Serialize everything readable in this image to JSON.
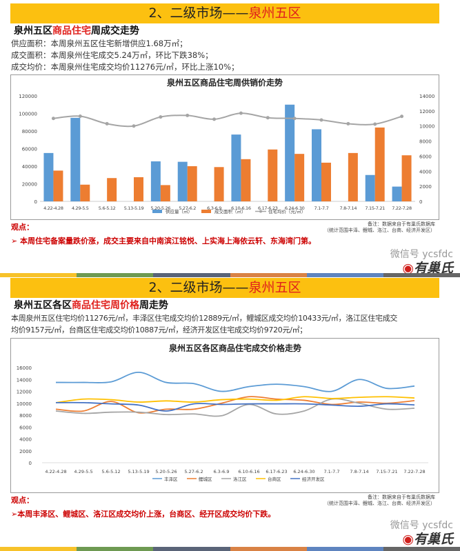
{
  "section1": {
    "banner_prefix": "2、二级市场——",
    "banner_highlight": "泉州五区",
    "subtitle_a": "泉州五区",
    "subtitle_hl": "商品住宅",
    "subtitle_b": "周成交走势",
    "lines": [
      "供应面积：本周泉州五区住宅新增供应1.68万㎡；",
      "成交面积：本周泉州住宅成交5.24万㎡，环比下跌38%；",
      "成交均价：本周泉州住宅成交均价11276元/㎡，环比上涨10%；"
    ],
    "view_label": "观点：",
    "view_text": "➢   本周住宅备案量跌价涨，成交主要来自中南滨江铭悦、上实海上海依云轩、东海湾门第。",
    "note_lines": [
      "备注：数据来自于有巢氏数据库",
      "（统计范围丰泽、鲤城、洛江、台商、经济开发区）"
    ]
  },
  "section2": {
    "banner_prefix": "2、二级市场——",
    "banner_highlight": "泉州五区",
    "subtitle_a": "泉州五区各区",
    "subtitle_hl": "商品住宅周价格",
    "subtitle_b": "周走势",
    "lines": [
      "本周泉州五区住宅均价11276元/㎡，丰泽区住宅成交均价12889元/㎡，鲤城区成交均价10433元/㎡，洛江区住宅成交",
      "均价9157元/㎡，台商区住宅成交均价10887元/㎡，经济开发区住宅成交均价9720元/㎡；"
    ],
    "view_label": "观点：",
    "view_text": "➢本周丰泽区、鲤城区、洛江区成交均价上涨，台商区、经开区成交均价下跌。",
    "note_lines": [
      "备注：数据来自于有巢氏数据库",
      "（统计范围丰泽、鲤城、洛江、台商、经济开发区）"
    ]
  },
  "logo": {
    "wechat": "微信号 ycsfdc",
    "brand": "有巢氏"
  },
  "stripe_colors": [
    "#f7c22a",
    "#6e9a52",
    "#5a6478",
    "#d98245",
    "#5e84bf",
    "#666666"
  ],
  "chart_data": [
    {
      "type": "bar+line",
      "title": "泉州五区商品住宅周供销价走势",
      "categories": [
        "4.22-4.28",
        "4.29-5.5",
        "5.6-5.12",
        "5.13-5.19",
        "5.20-5.26",
        "5.27-6.2",
        "6.3-6.9",
        "6.10-6.16",
        "6.17-6.23",
        "6.24-6.30",
        "7.1-7.7",
        "7.8-7.14",
        "7.15-7.21",
        "7.22-7.28"
      ],
      "ylim_left": [
        0,
        120000
      ],
      "yticks_left": [
        0,
        20000,
        40000,
        60000,
        80000,
        100000,
        120000
      ],
      "ylim_right": [
        0,
        14000
      ],
      "yticks_right": [
        0,
        2000,
        4000,
        6000,
        8000,
        10000,
        12000,
        14000
      ],
      "legend": "bottom",
      "grid": false,
      "series": [
        {
          "name": "供应量（㎡）",
          "type": "bar",
          "axis": "left",
          "color": "#5b9bd5",
          "values": [
            55000,
            95000,
            0,
            0,
            45500,
            45000,
            0,
            76000,
            0,
            110000,
            82000,
            0,
            30000,
            16800
          ]
        },
        {
          "name": "成交面积（㎡）",
          "type": "bar",
          "axis": "left",
          "color": "#ed7d31",
          "values": [
            35000,
            19000,
            26500,
            27500,
            18500,
            40000,
            39000,
            48000,
            59000,
            54000,
            44000,
            55000,
            84000,
            52400
          ]
        },
        {
          "name": "住宅均价（元/㎡）",
          "type": "line",
          "axis": "right",
          "color": "#a5a5a5",
          "values": [
            11000,
            11300,
            10300,
            10000,
            11200,
            11400,
            10900,
            11700,
            11100,
            11000,
            10800,
            10300,
            10250,
            11276
          ]
        }
      ]
    },
    {
      "type": "line",
      "title": "泉州五区各区商品住宅成交价格走势",
      "categories": [
        "4.22-4.28",
        "4.29-5.5",
        "5.6-5.12",
        "5.13-5.19",
        "5.20-5.26",
        "5.27-6.2",
        "6.3-6.9",
        "6.10-6.16",
        "6.17-6.23",
        "6.24-6.30",
        "7.1-7.7",
        "7.8-7.14",
        "7.15-7.21",
        "7.22-7.28"
      ],
      "ylim": [
        0,
        16000
      ],
      "yticks": [
        0,
        2000,
        4000,
        6000,
        8000,
        10000,
        12000,
        14000,
        16000
      ],
      "legend": "bottom",
      "grid": true,
      "series": [
        {
          "name": "丰泽区",
          "color": "#5b9bd5",
          "values": [
            13500,
            13500,
            13600,
            15200,
            13500,
            13300,
            12000,
            12800,
            13200,
            12800,
            12000,
            14000,
            12500,
            12889
          ]
        },
        {
          "name": "鲤城区",
          "color": "#ed7d31",
          "values": [
            9000,
            8700,
            10300,
            8400,
            9000,
            9000,
            10000,
            11100,
            10700,
            10500,
            9800,
            10200,
            10000,
            10433
          ]
        },
        {
          "name": "洛江区",
          "color": "#a5a5a5",
          "values": [
            8700,
            8300,
            8500,
            8500,
            8100,
            8200,
            7900,
            9800,
            8200,
            8700,
            10700,
            10000,
            9000,
            9157
          ]
        },
        {
          "name": "台商区",
          "color": "#ffc000",
          "values": [
            10100,
            10700,
            10600,
            10200,
            10400,
            10200,
            10600,
            10700,
            10500,
            11100,
            10800,
            11000,
            11100,
            10887
          ]
        },
        {
          "name": "经济开发区",
          "color": "#4472c4",
          "values": [
            10100,
            10100,
            9900,
            9700,
            8700,
            9900,
            9800,
            9900,
            9900,
            9900,
            9700,
            9500,
            9900,
            9720
          ]
        }
      ]
    }
  ]
}
